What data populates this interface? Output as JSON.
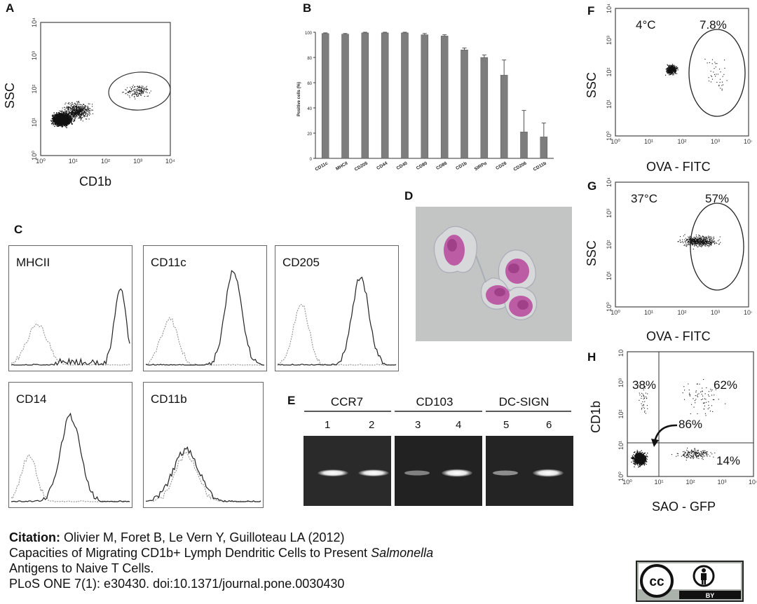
{
  "panels": {
    "A": {
      "letter": "A",
      "xlabel": "CD1b",
      "ylabel": "SSC"
    },
    "B": {
      "letter": "B"
    },
    "C": {
      "letter": "C",
      "histograms": [
        "MHCII",
        "CD11c",
        "CD205",
        "CD14",
        "CD11b"
      ]
    },
    "D": {
      "letter": "D"
    },
    "E": {
      "letter": "E",
      "groups": [
        "CCR7",
        "CD103",
        "DC-SIGN"
      ],
      "lanes": [
        "1",
        "2",
        "3",
        "4",
        "5",
        "6"
      ]
    },
    "F": {
      "letter": "F",
      "xlabel": "OVA - FITC",
      "ylabel": "SSC",
      "temp": "4°C",
      "pct": "7.8%"
    },
    "G": {
      "letter": "G",
      "xlabel": "OVA - FITC",
      "ylabel": "SSC",
      "temp": "37°C",
      "pct": "57%"
    },
    "H": {
      "letter": "H",
      "xlabel": "SAO - GFP",
      "ylabel": "CD1b",
      "q_ul": "38%",
      "q_ur": "62%",
      "q_center": "86%",
      "q_lr": "14%"
    }
  },
  "log_ticks": [
    "10⁰",
    "10¹",
    "10²",
    "10³",
    "10⁴"
  ],
  "chart_data": {
    "type": "bar",
    "ylabel": "Positive cells (%)",
    "categories": [
      "CD11c",
      "MHCII",
      "CD205",
      "CD44",
      "CD40",
      "CD80",
      "CD86",
      "CD1b",
      "SIRPα",
      "CD26",
      "CD206",
      "CD11b"
    ],
    "values": [
      99,
      98.5,
      99.5,
      99.5,
      99.5,
      98,
      97,
      86,
      80,
      66,
      21,
      17
    ],
    "errors": [
      0.5,
      0.5,
      0.5,
      0.5,
      0.5,
      1,
      1,
      1.5,
      2,
      12,
      17,
      11
    ],
    "ylim": [
      0,
      100
    ],
    "yticks": [
      0,
      20,
      40,
      60,
      80,
      100
    ],
    "color": "#7d7d7d"
  },
  "citation": {
    "label": "Citation:",
    "authors": "Olivier M, Foret B, Le Vern Y, Guilloteau LA (2012)",
    "title_pre": "Capacities of Migrating CD1b+ Lymph Dendritic Cells to Present ",
    "title_italic": "Salmonella",
    "title_post": "Antigens to Naive T Cells.",
    "journal": "PLoS ONE 7(1): e30430. doi:10.1371/journal.pone.0030430"
  },
  "license": {
    "cc": "cc",
    "by": "BY"
  }
}
